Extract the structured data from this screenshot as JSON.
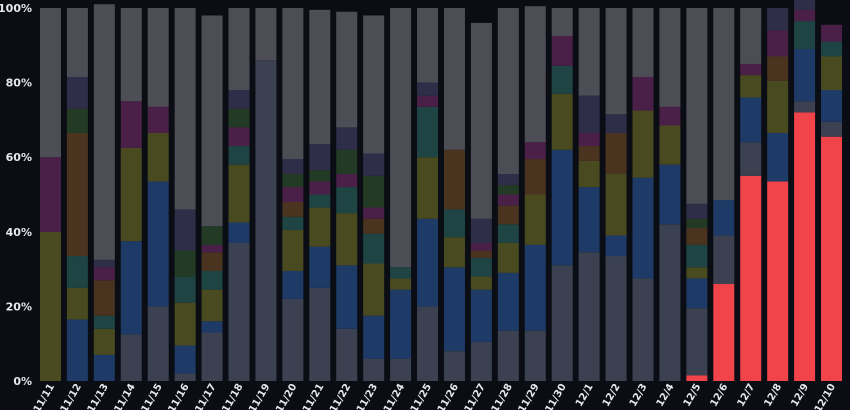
{
  "chart_data": {
    "type": "bar",
    "stacked": true,
    "normalized": true,
    "title": "",
    "xlabel": "",
    "ylabel": "",
    "ylim": [
      0,
      100
    ],
    "y_ticks": [
      "0%",
      "20%",
      "40%",
      "60%",
      "80%",
      "100%"
    ],
    "grid": false,
    "legend": "none",
    "categories": [
      "11/11",
      "11/12",
      "11/13",
      "11/14",
      "11/15",
      "11/16",
      "11/17",
      "11/18",
      "11/19",
      "11/20",
      "11/21",
      "11/22",
      "11/23",
      "11/24",
      "11/25",
      "11/26",
      "11/27",
      "11/28",
      "11/29",
      "11/30",
      "12/1",
      "12/2",
      "12/3",
      "12/4",
      "12/5",
      "12/6",
      "12/7",
      "12/8",
      "12/9",
      "12/10"
    ],
    "colors": {
      "highlight": "#f0444a",
      "slate": "#3b4150",
      "blue": "#1e3a66",
      "olive": "#4a4a20",
      "teal": "#1e4444",
      "brown": "#4a3420",
      "purple": "#4a2048",
      "darkgreen": "#233a24",
      "navy": "#2e2e48",
      "gray": "#4d4e55",
      "background": "#0a0d14"
    },
    "series": [
      {
        "key": "highlight",
        "values": [
          0,
          0,
          0,
          0,
          0,
          0,
          0,
          0,
          0,
          0,
          0,
          0,
          0,
          0,
          0,
          0,
          0,
          0,
          0,
          0,
          0,
          0,
          0,
          0,
          1.5,
          26,
          55,
          53.5,
          72,
          65.5
        ]
      },
      {
        "key": "slate",
        "values": [
          0,
          0,
          0,
          12.5,
          20,
          2,
          13,
          37,
          86,
          22,
          25,
          14,
          6,
          6,
          20,
          8,
          10.5,
          13.5,
          13.5,
          31,
          34.5,
          33.5,
          27.5,
          42,
          18,
          13,
          9,
          0,
          3,
          4
        ]
      },
      {
        "key": "blue",
        "values": [
          0,
          16.5,
          7,
          25,
          33.5,
          7.5,
          3,
          5.5,
          0,
          7.5,
          11,
          17,
          11.5,
          18.5,
          23.5,
          22.5,
          14,
          15.5,
          23,
          31,
          17.5,
          5.5,
          27,
          16,
          8,
          9.5,
          12,
          13,
          14,
          8.5
        ]
      },
      {
        "key": "olive",
        "values": [
          40,
          8.5,
          7,
          25,
          13,
          11.5,
          8.5,
          15.5,
          0,
          11,
          10.5,
          14,
          14,
          3,
          16.5,
          8,
          3.5,
          8,
          13.5,
          15,
          7,
          16.5,
          18,
          10.5,
          3,
          0,
          6,
          14,
          0,
          9
        ]
      },
      {
        "key": "teal",
        "values": [
          0,
          8.5,
          3.5,
          0,
          0,
          7,
          5,
          5,
          0,
          3.5,
          3.5,
          7,
          8,
          3,
          13.5,
          7.5,
          5,
          5,
          0,
          7.5,
          0,
          0,
          0,
          0,
          6,
          0,
          0,
          0,
          7.5,
          4
        ]
      },
      {
        "key": "brown",
        "values": [
          0,
          33,
          9.5,
          0,
          0,
          0,
          5,
          0,
          0,
          4,
          0,
          0,
          4,
          0,
          0,
          16,
          2,
          5,
          9.5,
          0,
          4,
          11,
          0,
          0,
          4.5,
          0,
          0,
          6.5,
          0,
          0
        ]
      },
      {
        "key": "purple",
        "values": [
          20,
          0,
          3.5,
          12.5,
          7,
          0,
          2,
          5,
          0,
          4,
          3.5,
          3.5,
          3,
          0,
          3,
          0,
          2,
          3,
          4.5,
          8,
          3.5,
          0,
          9,
          5,
          0,
          0,
          3,
          7,
          3,
          4.5
        ]
      },
      {
        "key": "darkgreen",
        "values": [
          0,
          6.5,
          0,
          0,
          0,
          7,
          5,
          5,
          0,
          3.5,
          3,
          6.5,
          8.5,
          0,
          0,
          0,
          0,
          2.5,
          0,
          0,
          0,
          0,
          0,
          0,
          2.5,
          0,
          0,
          0,
          0,
          0
        ]
      },
      {
        "key": "navy",
        "values": [
          0,
          8.5,
          2,
          0,
          0,
          11,
          0,
          5,
          0,
          4,
          7,
          6,
          6,
          0,
          3.5,
          0,
          6.5,
          3,
          0,
          0,
          10,
          5,
          0,
          0,
          4,
          0,
          0,
          6,
          7.5,
          0
        ]
      },
      {
        "key": "gray",
        "values": [
          40,
          18.5,
          68.5,
          25,
          26.5,
          54,
          56.5,
          22,
          14,
          40.5,
          36,
          31,
          37,
          69.5,
          20,
          38,
          52.5,
          44.5,
          36.5,
          7.5,
          23.5,
          28.5,
          18.5,
          26.5,
          52.5,
          51.5,
          15,
          0,
          0,
          0
        ]
      }
    ]
  }
}
